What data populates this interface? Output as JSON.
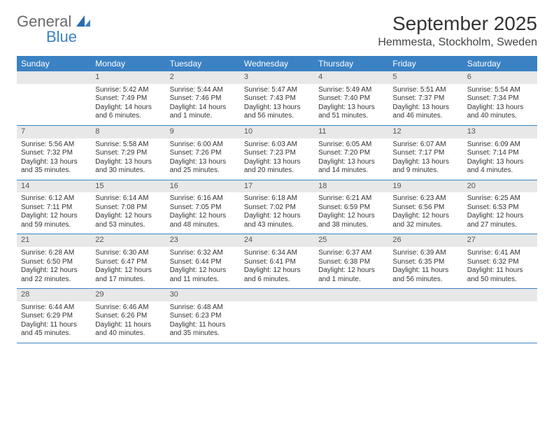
{
  "logo": {
    "text1": "General",
    "text2": "Blue"
  },
  "title": "September 2025",
  "location": "Hemmesta, Stockholm, Sweden",
  "colors": {
    "header_bg": "#3b82c4",
    "header_text": "#ffffff",
    "daynum_bg": "#e8e8e8",
    "daynum_text": "#555555",
    "body_text": "#333333",
    "row_border": "#3b82c4",
    "page_bg": "#ffffff"
  },
  "typography": {
    "month_title_fontsize": 28,
    "location_fontsize": 16,
    "weekday_fontsize": 12,
    "daynum_fontsize": 11,
    "cell_fontsize": 10
  },
  "weekdays": [
    "Sunday",
    "Monday",
    "Tuesday",
    "Wednesday",
    "Thursday",
    "Friday",
    "Saturday"
  ],
  "weeks": [
    [
      {
        "day": "",
        "lines": [
          "",
          "",
          "",
          ""
        ]
      },
      {
        "day": "1",
        "lines": [
          "Sunrise: 5:42 AM",
          "Sunset: 7:49 PM",
          "Daylight: 14 hours",
          "and 6 minutes."
        ]
      },
      {
        "day": "2",
        "lines": [
          "Sunrise: 5:44 AM",
          "Sunset: 7:46 PM",
          "Daylight: 14 hours",
          "and 1 minute."
        ]
      },
      {
        "day": "3",
        "lines": [
          "Sunrise: 5:47 AM",
          "Sunset: 7:43 PM",
          "Daylight: 13 hours",
          "and 56 minutes."
        ]
      },
      {
        "day": "4",
        "lines": [
          "Sunrise: 5:49 AM",
          "Sunset: 7:40 PM",
          "Daylight: 13 hours",
          "and 51 minutes."
        ]
      },
      {
        "day": "5",
        "lines": [
          "Sunrise: 5:51 AM",
          "Sunset: 7:37 PM",
          "Daylight: 13 hours",
          "and 46 minutes."
        ]
      },
      {
        "day": "6",
        "lines": [
          "Sunrise: 5:54 AM",
          "Sunset: 7:34 PM",
          "Daylight: 13 hours",
          "and 40 minutes."
        ]
      }
    ],
    [
      {
        "day": "7",
        "lines": [
          "Sunrise: 5:56 AM",
          "Sunset: 7:32 PM",
          "Daylight: 13 hours",
          "and 35 minutes."
        ]
      },
      {
        "day": "8",
        "lines": [
          "Sunrise: 5:58 AM",
          "Sunset: 7:29 PM",
          "Daylight: 13 hours",
          "and 30 minutes."
        ]
      },
      {
        "day": "9",
        "lines": [
          "Sunrise: 6:00 AM",
          "Sunset: 7:26 PM",
          "Daylight: 13 hours",
          "and 25 minutes."
        ]
      },
      {
        "day": "10",
        "lines": [
          "Sunrise: 6:03 AM",
          "Sunset: 7:23 PM",
          "Daylight: 13 hours",
          "and 20 minutes."
        ]
      },
      {
        "day": "11",
        "lines": [
          "Sunrise: 6:05 AM",
          "Sunset: 7:20 PM",
          "Daylight: 13 hours",
          "and 14 minutes."
        ]
      },
      {
        "day": "12",
        "lines": [
          "Sunrise: 6:07 AM",
          "Sunset: 7:17 PM",
          "Daylight: 13 hours",
          "and 9 minutes."
        ]
      },
      {
        "day": "13",
        "lines": [
          "Sunrise: 6:09 AM",
          "Sunset: 7:14 PM",
          "Daylight: 13 hours",
          "and 4 minutes."
        ]
      }
    ],
    [
      {
        "day": "14",
        "lines": [
          "Sunrise: 6:12 AM",
          "Sunset: 7:11 PM",
          "Daylight: 12 hours",
          "and 59 minutes."
        ]
      },
      {
        "day": "15",
        "lines": [
          "Sunrise: 6:14 AM",
          "Sunset: 7:08 PM",
          "Daylight: 12 hours",
          "and 53 minutes."
        ]
      },
      {
        "day": "16",
        "lines": [
          "Sunrise: 6:16 AM",
          "Sunset: 7:05 PM",
          "Daylight: 12 hours",
          "and 48 minutes."
        ]
      },
      {
        "day": "17",
        "lines": [
          "Sunrise: 6:18 AM",
          "Sunset: 7:02 PM",
          "Daylight: 12 hours",
          "and 43 minutes."
        ]
      },
      {
        "day": "18",
        "lines": [
          "Sunrise: 6:21 AM",
          "Sunset: 6:59 PM",
          "Daylight: 12 hours",
          "and 38 minutes."
        ]
      },
      {
        "day": "19",
        "lines": [
          "Sunrise: 6:23 AM",
          "Sunset: 6:56 PM",
          "Daylight: 12 hours",
          "and 32 minutes."
        ]
      },
      {
        "day": "20",
        "lines": [
          "Sunrise: 6:25 AM",
          "Sunset: 6:53 PM",
          "Daylight: 12 hours",
          "and 27 minutes."
        ]
      }
    ],
    [
      {
        "day": "21",
        "lines": [
          "Sunrise: 6:28 AM",
          "Sunset: 6:50 PM",
          "Daylight: 12 hours",
          "and 22 minutes."
        ]
      },
      {
        "day": "22",
        "lines": [
          "Sunrise: 6:30 AM",
          "Sunset: 6:47 PM",
          "Daylight: 12 hours",
          "and 17 minutes."
        ]
      },
      {
        "day": "23",
        "lines": [
          "Sunrise: 6:32 AM",
          "Sunset: 6:44 PM",
          "Daylight: 12 hours",
          "and 11 minutes."
        ]
      },
      {
        "day": "24",
        "lines": [
          "Sunrise: 6:34 AM",
          "Sunset: 6:41 PM",
          "Daylight: 12 hours",
          "and 6 minutes."
        ]
      },
      {
        "day": "25",
        "lines": [
          "Sunrise: 6:37 AM",
          "Sunset: 6:38 PM",
          "Daylight: 12 hours",
          "and 1 minute."
        ]
      },
      {
        "day": "26",
        "lines": [
          "Sunrise: 6:39 AM",
          "Sunset: 6:35 PM",
          "Daylight: 11 hours",
          "and 56 minutes."
        ]
      },
      {
        "day": "27",
        "lines": [
          "Sunrise: 6:41 AM",
          "Sunset: 6:32 PM",
          "Daylight: 11 hours",
          "and 50 minutes."
        ]
      }
    ],
    [
      {
        "day": "28",
        "lines": [
          "Sunrise: 6:44 AM",
          "Sunset: 6:29 PM",
          "Daylight: 11 hours",
          "and 45 minutes."
        ]
      },
      {
        "day": "29",
        "lines": [
          "Sunrise: 6:46 AM",
          "Sunset: 6:26 PM",
          "Daylight: 11 hours",
          "and 40 minutes."
        ]
      },
      {
        "day": "30",
        "lines": [
          "Sunrise: 6:48 AM",
          "Sunset: 6:23 PM",
          "Daylight: 11 hours",
          "and 35 minutes."
        ]
      },
      {
        "day": "",
        "lines": [
          "",
          "",
          "",
          ""
        ]
      },
      {
        "day": "",
        "lines": [
          "",
          "",
          "",
          ""
        ]
      },
      {
        "day": "",
        "lines": [
          "",
          "",
          "",
          ""
        ]
      },
      {
        "day": "",
        "lines": [
          "",
          "",
          "",
          ""
        ]
      }
    ]
  ]
}
